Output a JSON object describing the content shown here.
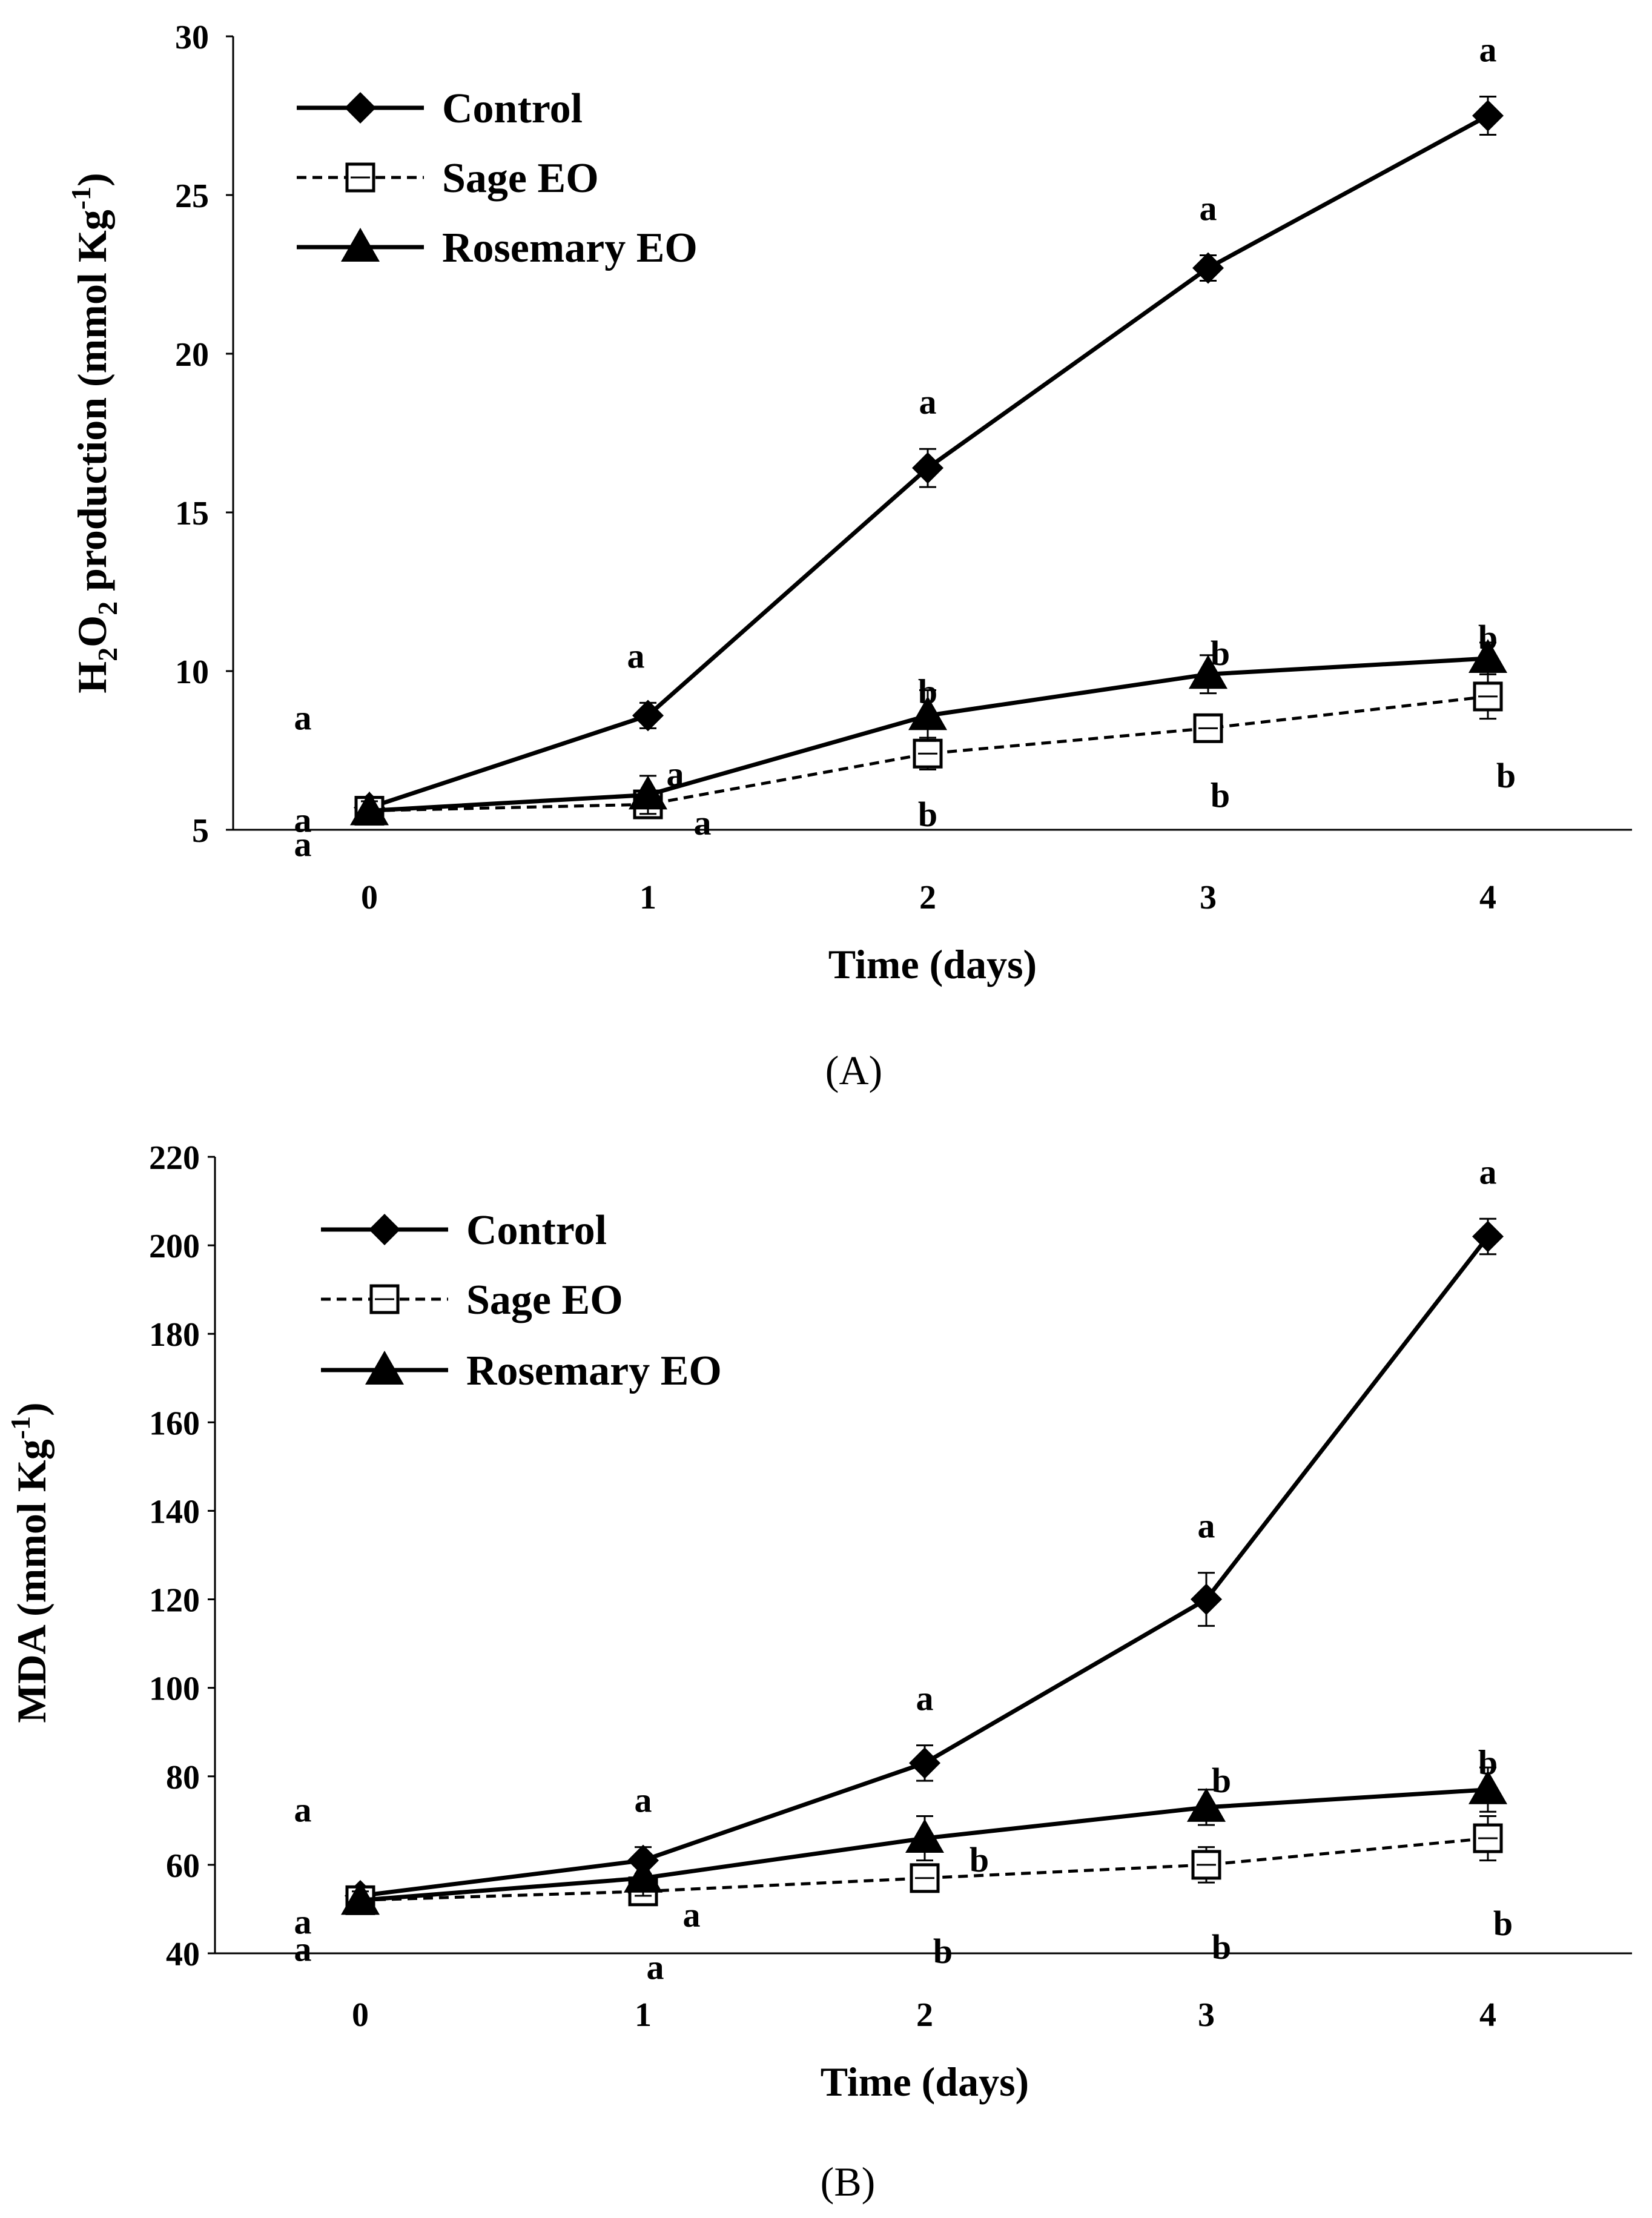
{
  "chart_data": [
    {
      "type": "line",
      "panel_label": "(A)",
      "ylabel": {
        "main": "H",
        "sub1": "2",
        "mid": "O",
        "sub2": "2",
        "rest": "  production (mmol Kg",
        "sup": "-1",
        "end": ")"
      },
      "xlabel": "Time (days)",
      "categories": [
        "0",
        "1",
        "2",
        "3",
        "4"
      ],
      "x": [
        0,
        1,
        2,
        3,
        4
      ],
      "ylim": [
        5,
        30
      ],
      "yticks": [
        5,
        10,
        15,
        20,
        25,
        30
      ],
      "ytick_labels": [
        "5",
        "10",
        "15",
        "20",
        "25",
        "30"
      ],
      "legend_position": "top-left",
      "series": [
        {
          "name": "Control",
          "marker": "diamond",
          "line": "solid",
          "values": [
            5.7,
            8.6,
            16.4,
            22.7,
            27.5
          ],
          "errors": [
            0.3,
            0.4,
            0.6,
            0.4,
            0.6
          ],
          "letters": [
            "a",
            "a",
            "a",
            "a",
            "a"
          ]
        },
        {
          "name": "Sage EO",
          "marker": "square-open",
          "line": "dashed",
          "values": [
            5.6,
            5.8,
            7.4,
            8.2,
            9.2
          ],
          "errors": [
            0.3,
            0.4,
            0.5,
            0.4,
            0.7
          ],
          "letters": [
            "a",
            "a",
            "b",
            "b",
            "b"
          ]
        },
        {
          "name": "Rosemary EO",
          "marker": "triangle",
          "line": "solid",
          "values": [
            5.6,
            6.1,
            8.6,
            9.9,
            10.4
          ],
          "errors": [
            0.3,
            0.6,
            0.8,
            0.6,
            0.5
          ],
          "letters": [
            "a",
            "a",
            "b",
            "b",
            "b"
          ]
        }
      ]
    },
    {
      "type": "line",
      "panel_label": "(B)",
      "ylabel": {
        "main": "MDA (mmol Kg",
        "sup": "-1",
        "end": ")"
      },
      "xlabel": "Time (days)",
      "categories": [
        "0",
        "1",
        "2",
        "3",
        "4"
      ],
      "x": [
        0,
        1,
        2,
        3,
        4
      ],
      "ylim": [
        40,
        220
      ],
      "yticks": [
        40,
        60,
        80,
        100,
        120,
        140,
        160,
        180,
        200,
        220
      ],
      "ytick_labels": [
        "40",
        "60",
        "80",
        "100",
        "120",
        "140",
        "160",
        "180",
        "200",
        "220"
      ],
      "legend_position": "top-left",
      "series": [
        {
          "name": "Control",
          "marker": "diamond",
          "line": "solid",
          "values": [
            53,
            61,
            83,
            120,
            202
          ],
          "errors": [
            2,
            3,
            4,
            6,
            4
          ],
          "letters": [
            "a",
            "a",
            "a",
            "a",
            "a"
          ]
        },
        {
          "name": "Sage EO",
          "marker": "square-open",
          "line": "dashed",
          "values": [
            52,
            54,
            57,
            60,
            66
          ],
          "errors": [
            2,
            3,
            3,
            4,
            5
          ],
          "letters": [
            "a",
            "a",
            "b",
            "b",
            "b"
          ]
        },
        {
          "name": "Rosemary EO",
          "marker": "triangle",
          "line": "solid",
          "values": [
            52,
            57,
            66,
            73,
            77
          ],
          "errors": [
            2,
            4,
            5,
            4,
            5
          ],
          "letters": [
            "a",
            "a",
            "b",
            "b",
            "b"
          ]
        }
      ]
    }
  ]
}
